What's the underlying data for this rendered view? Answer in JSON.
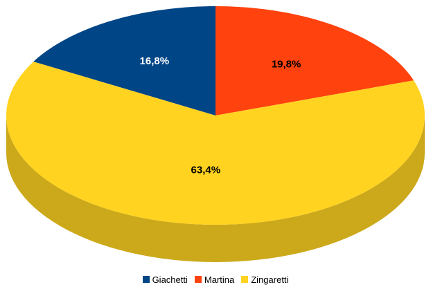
{
  "chart_data": {
    "type": "pie",
    "variant": "3d",
    "legend_position": "bottom",
    "series": [
      {
        "name": "Giachetti",
        "value": 16.8,
        "label": "16,8%",
        "color": "#004586",
        "label_color": "#ffffff"
      },
      {
        "name": "Martina",
        "value": 19.8,
        "label": "19,8%",
        "color": "#ff420e",
        "label_color": "#000000"
      },
      {
        "name": "Zingaretti",
        "value": 63.4,
        "label": "63,4%",
        "color": "#ffd320",
        "label_color": "#000000"
      }
    ]
  }
}
